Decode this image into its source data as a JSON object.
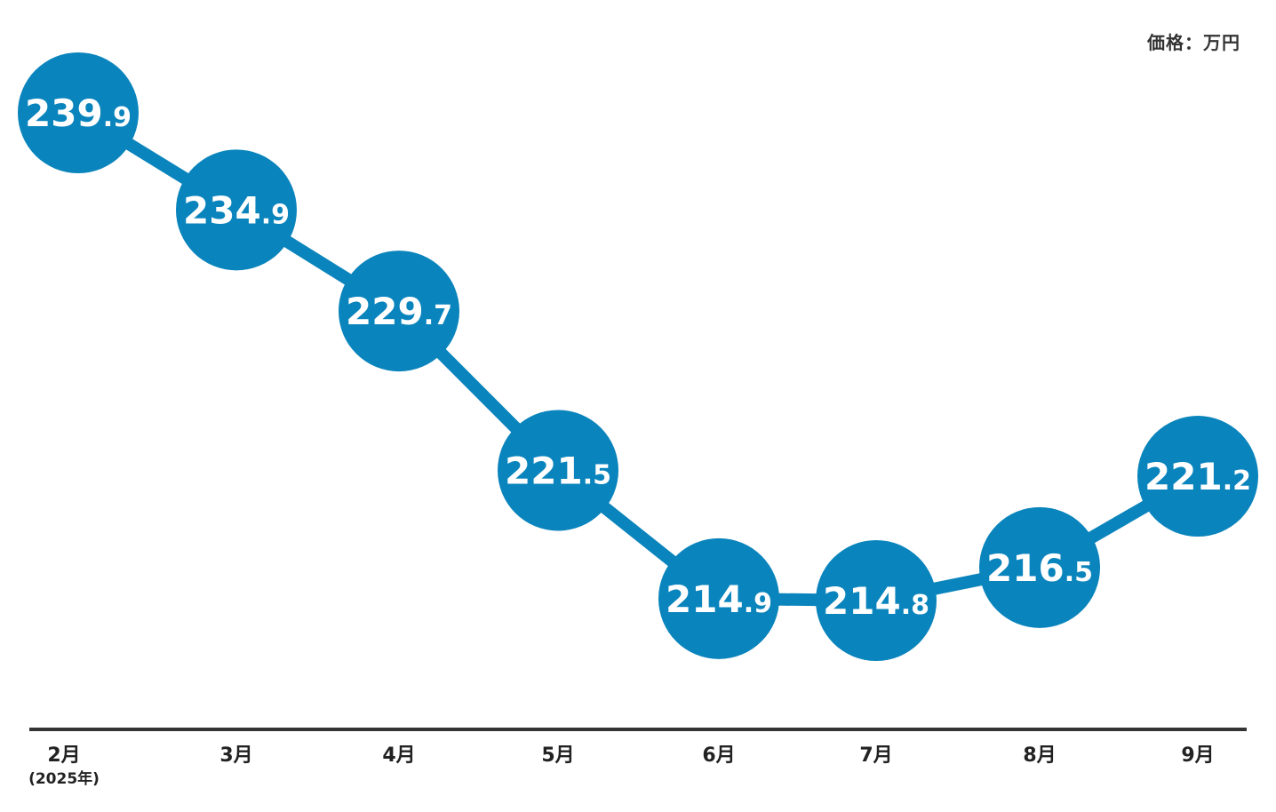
{
  "unit": "価格：万円",
  "chart_data": {
    "type": "line",
    "title": "",
    "xlabel": "",
    "ylabel": "",
    "categories": [
      "2月",
      "3月",
      "4月",
      "5月",
      "6月",
      "7月",
      "8月",
      "9月"
    ],
    "first_category_note": "(2025年)",
    "values": [
      239.9,
      234.9,
      229.7,
      221.5,
      214.9,
      214.8,
      216.5,
      221.2
    ],
    "labels": [
      {
        "int": "239",
        "dec": ".9"
      },
      {
        "int": "234",
        "dec": ".9"
      },
      {
        "int": "229",
        "dec": ".7"
      },
      {
        "int": "221",
        "dec": ".5"
      },
      {
        "int": "214",
        "dec": ".9"
      },
      {
        "int": "214",
        "dec": ".8"
      },
      {
        "int": "216",
        "dec": ".5"
      },
      {
        "int": "221",
        "dec": ".2"
      }
    ],
    "grid": false,
    "legend": "none"
  },
  "colors": {
    "series": "#0a84bc",
    "axis": "#333333",
    "label_text": "#ffffff"
  }
}
